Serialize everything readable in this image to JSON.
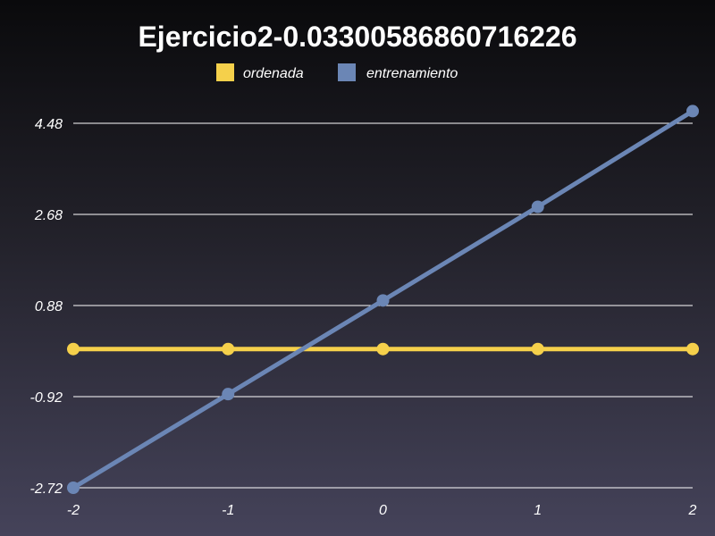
{
  "chart_data": {
    "type": "line",
    "title": "Ejercicio2-0.03300586860716226",
    "xlabel": "",
    "ylabel": "",
    "x": [
      -2,
      -1,
      0,
      1,
      2
    ],
    "x_tick_labels": [
      "-2",
      "-1",
      "0",
      "1",
      "2"
    ],
    "y_ticks": [
      -2.72,
      -0.92,
      0.88,
      2.68,
      4.48
    ],
    "y_tick_labels": [
      "-2.72",
      "-0.92",
      "0.88",
      "2.68",
      "4.48"
    ],
    "ylim": [
      -2.72,
      4.48
    ],
    "xlim": [
      -2,
      2
    ],
    "grid": "horizontal",
    "legend_position": "top-center",
    "series": [
      {
        "name": "ordenada",
        "color": "#f5d04b",
        "values": [
          0.02,
          0.02,
          0.02,
          0.02,
          0.02
        ]
      },
      {
        "name": "entrenamiento",
        "color": "#6b86b5",
        "values": [
          -2.72,
          -0.87,
          0.98,
          2.83,
          4.72
        ]
      }
    ]
  }
}
